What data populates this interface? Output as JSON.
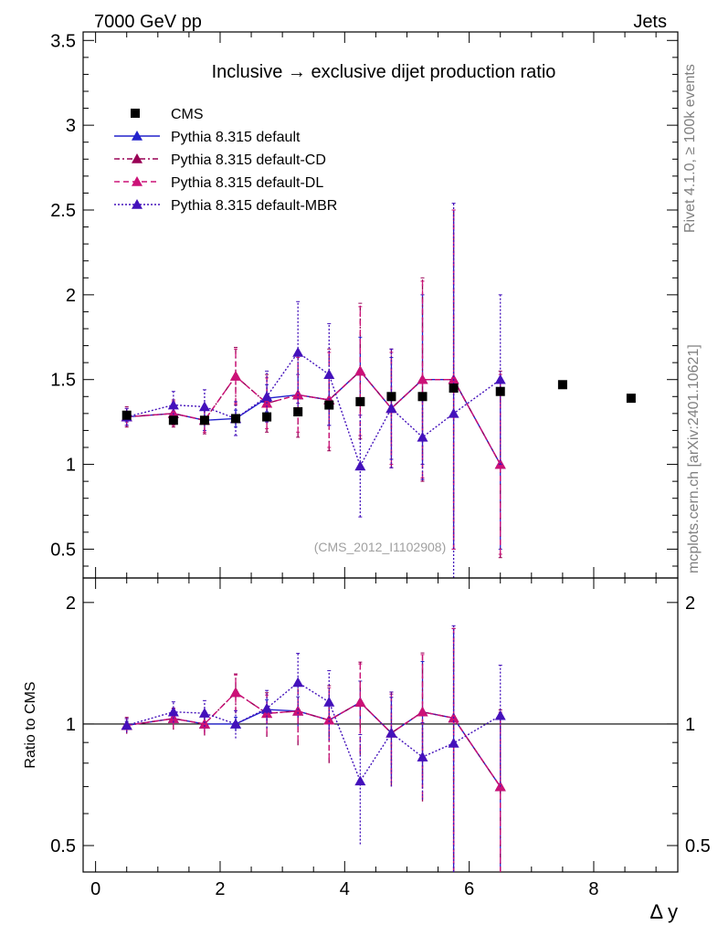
{
  "header": {
    "left_label": "7000 GeV pp",
    "right_label": "Jets"
  },
  "side_labels": {
    "rivet": "Rivet 4.1.0, ≥ 100k events",
    "mcplots": "mcplots.cern.ch [arXiv:2401.10621]"
  },
  "chart_data": {
    "type": "scatter",
    "title": "Inclusive → exclusive dijet production ratio",
    "watermark": "(CMS_2012_I1102908)",
    "xlabel": "Δ y",
    "ylabel_main": "",
    "ylabel_ratio": "Ratio to CMS",
    "xlim": [
      -0.2,
      9.35
    ],
    "ylim_main": [
      0.33,
      3.55
    ],
    "ylim_ratio": [
      0.43,
      2.3
    ],
    "x_ticks": [
      "0",
      "2",
      "4",
      "6",
      "8"
    ],
    "y_ticks_main": [
      "0.5",
      "1",
      "1.5",
      "2",
      "2.5",
      "3",
      "3.5"
    ],
    "y_ticks_ratio": [
      "0.5",
      "1",
      "2"
    ],
    "data": {
      "name": "CMS",
      "color": "#000000",
      "x": [
        0.5,
        1.25,
        1.75,
        2.25,
        2.75,
        3.25,
        3.75,
        4.25,
        4.75,
        5.25,
        5.75,
        6.5,
        7.5,
        8.6
      ],
      "y": [
        1.29,
        1.26,
        1.26,
        1.27,
        1.28,
        1.31,
        1.35,
        1.37,
        1.4,
        1.4,
        1.45,
        1.43,
        1.47,
        1.39
      ]
    },
    "series": [
      {
        "name": "Pythia 8.315 default",
        "color": "#2222cc",
        "dash": "",
        "x": [
          0.5,
          1.25,
          1.75,
          2.25,
          2.75,
          3.25,
          3.75,
          4.25,
          4.75,
          5.25,
          5.75,
          6.5
        ],
        "y": [
          1.28,
          1.3,
          1.26,
          1.27,
          1.39,
          1.41,
          1.38,
          1.55,
          1.33,
          1.5,
          1.5,
          1.0
        ],
        "err": [
          0.03,
          0.05,
          0.06,
          0.05,
          0.08,
          0.12,
          0.15,
          0.2,
          0.3,
          0.5,
          1.0,
          0.5
        ]
      },
      {
        "name": "Pythia 8.315 default-CD",
        "color": "#990055",
        "dash": "6,3,2,3",
        "x": [
          0.5,
          1.25,
          1.75,
          2.25,
          2.75,
          3.25,
          3.75,
          4.25,
          4.75,
          5.25,
          5.75,
          6.5
        ],
        "y": [
          1.28,
          1.3,
          1.26,
          1.52,
          1.36,
          1.41,
          1.38,
          1.55,
          1.33,
          1.5,
          1.5,
          1.0
        ],
        "err": [
          0.06,
          0.08,
          0.08,
          0.17,
          0.17,
          0.25,
          0.3,
          0.4,
          0.35,
          0.6,
          1.0,
          0.55
        ]
      },
      {
        "name": "Pythia 8.315 default-DL",
        "color": "#cc1177",
        "dash": "6,4",
        "x": [
          0.5,
          1.25,
          1.75,
          2.25,
          2.75,
          3.25,
          3.75,
          4.25,
          4.75,
          5.25,
          5.75,
          6.5
        ],
        "y": [
          1.28,
          1.3,
          1.26,
          1.52,
          1.36,
          1.41,
          1.38,
          1.55,
          1.33,
          1.5,
          1.5,
          1.0
        ],
        "err": [
          0.05,
          0.07,
          0.07,
          0.16,
          0.15,
          0.22,
          0.28,
          0.38,
          0.33,
          0.58,
          1.0,
          0.53
        ]
      },
      {
        "name": "Pythia 8.315 default-MBR",
        "color": "#4411bb",
        "dash": "2,2",
        "x": [
          0.5,
          1.25,
          1.75,
          2.25,
          2.75,
          3.25,
          3.75,
          4.25,
          4.75,
          5.25,
          5.75,
          6.5
        ],
        "y": [
          1.28,
          1.35,
          1.34,
          1.27,
          1.4,
          1.66,
          1.53,
          0.99,
          1.33,
          1.16,
          1.3,
          1.5
        ],
        "err": [
          0.05,
          0.08,
          0.1,
          0.1,
          0.15,
          0.3,
          0.3,
          0.3,
          0.35,
          0.25,
          1.24,
          0.5
        ]
      }
    ]
  }
}
